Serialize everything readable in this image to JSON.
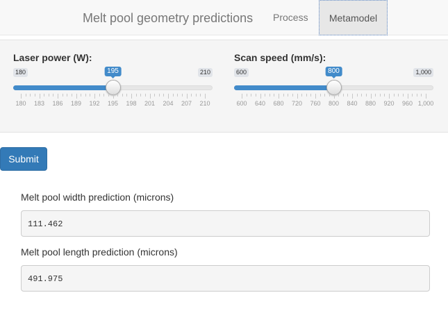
{
  "navbar": {
    "title": "Melt pool geometry predictions",
    "tabs": [
      {
        "label": "Process",
        "active": false
      },
      {
        "label": "Metamodel",
        "active": true
      }
    ]
  },
  "sliders": {
    "power": {
      "label": "Laser power (W):",
      "min": 180,
      "max": 210,
      "value": 195,
      "min_label": "180",
      "max_label": "210",
      "value_label": "195",
      "ticks": [
        "180",
        "183",
        "186",
        "189",
        "192",
        "195",
        "198",
        "201",
        "204",
        "207",
        "210"
      ]
    },
    "speed": {
      "label": "Scan speed (mm/s):",
      "min": 600,
      "max": 1000,
      "value": 800,
      "min_label": "600",
      "max_label": "1,000",
      "value_label": "800",
      "ticks": [
        "600",
        "640",
        "680",
        "720",
        "760",
        "800",
        "840",
        "880",
        "920",
        "960",
        "1,000"
      ]
    }
  },
  "submit_label": "Submit",
  "outputs": {
    "width_label": "Melt pool width prediction (microns)",
    "width_value": "111.462",
    "length_label": "Melt pool length prediction (microns)",
    "length_value": "491.975"
  },
  "colors": {
    "accent": "#428bca",
    "button": "#337ab7"
  }
}
